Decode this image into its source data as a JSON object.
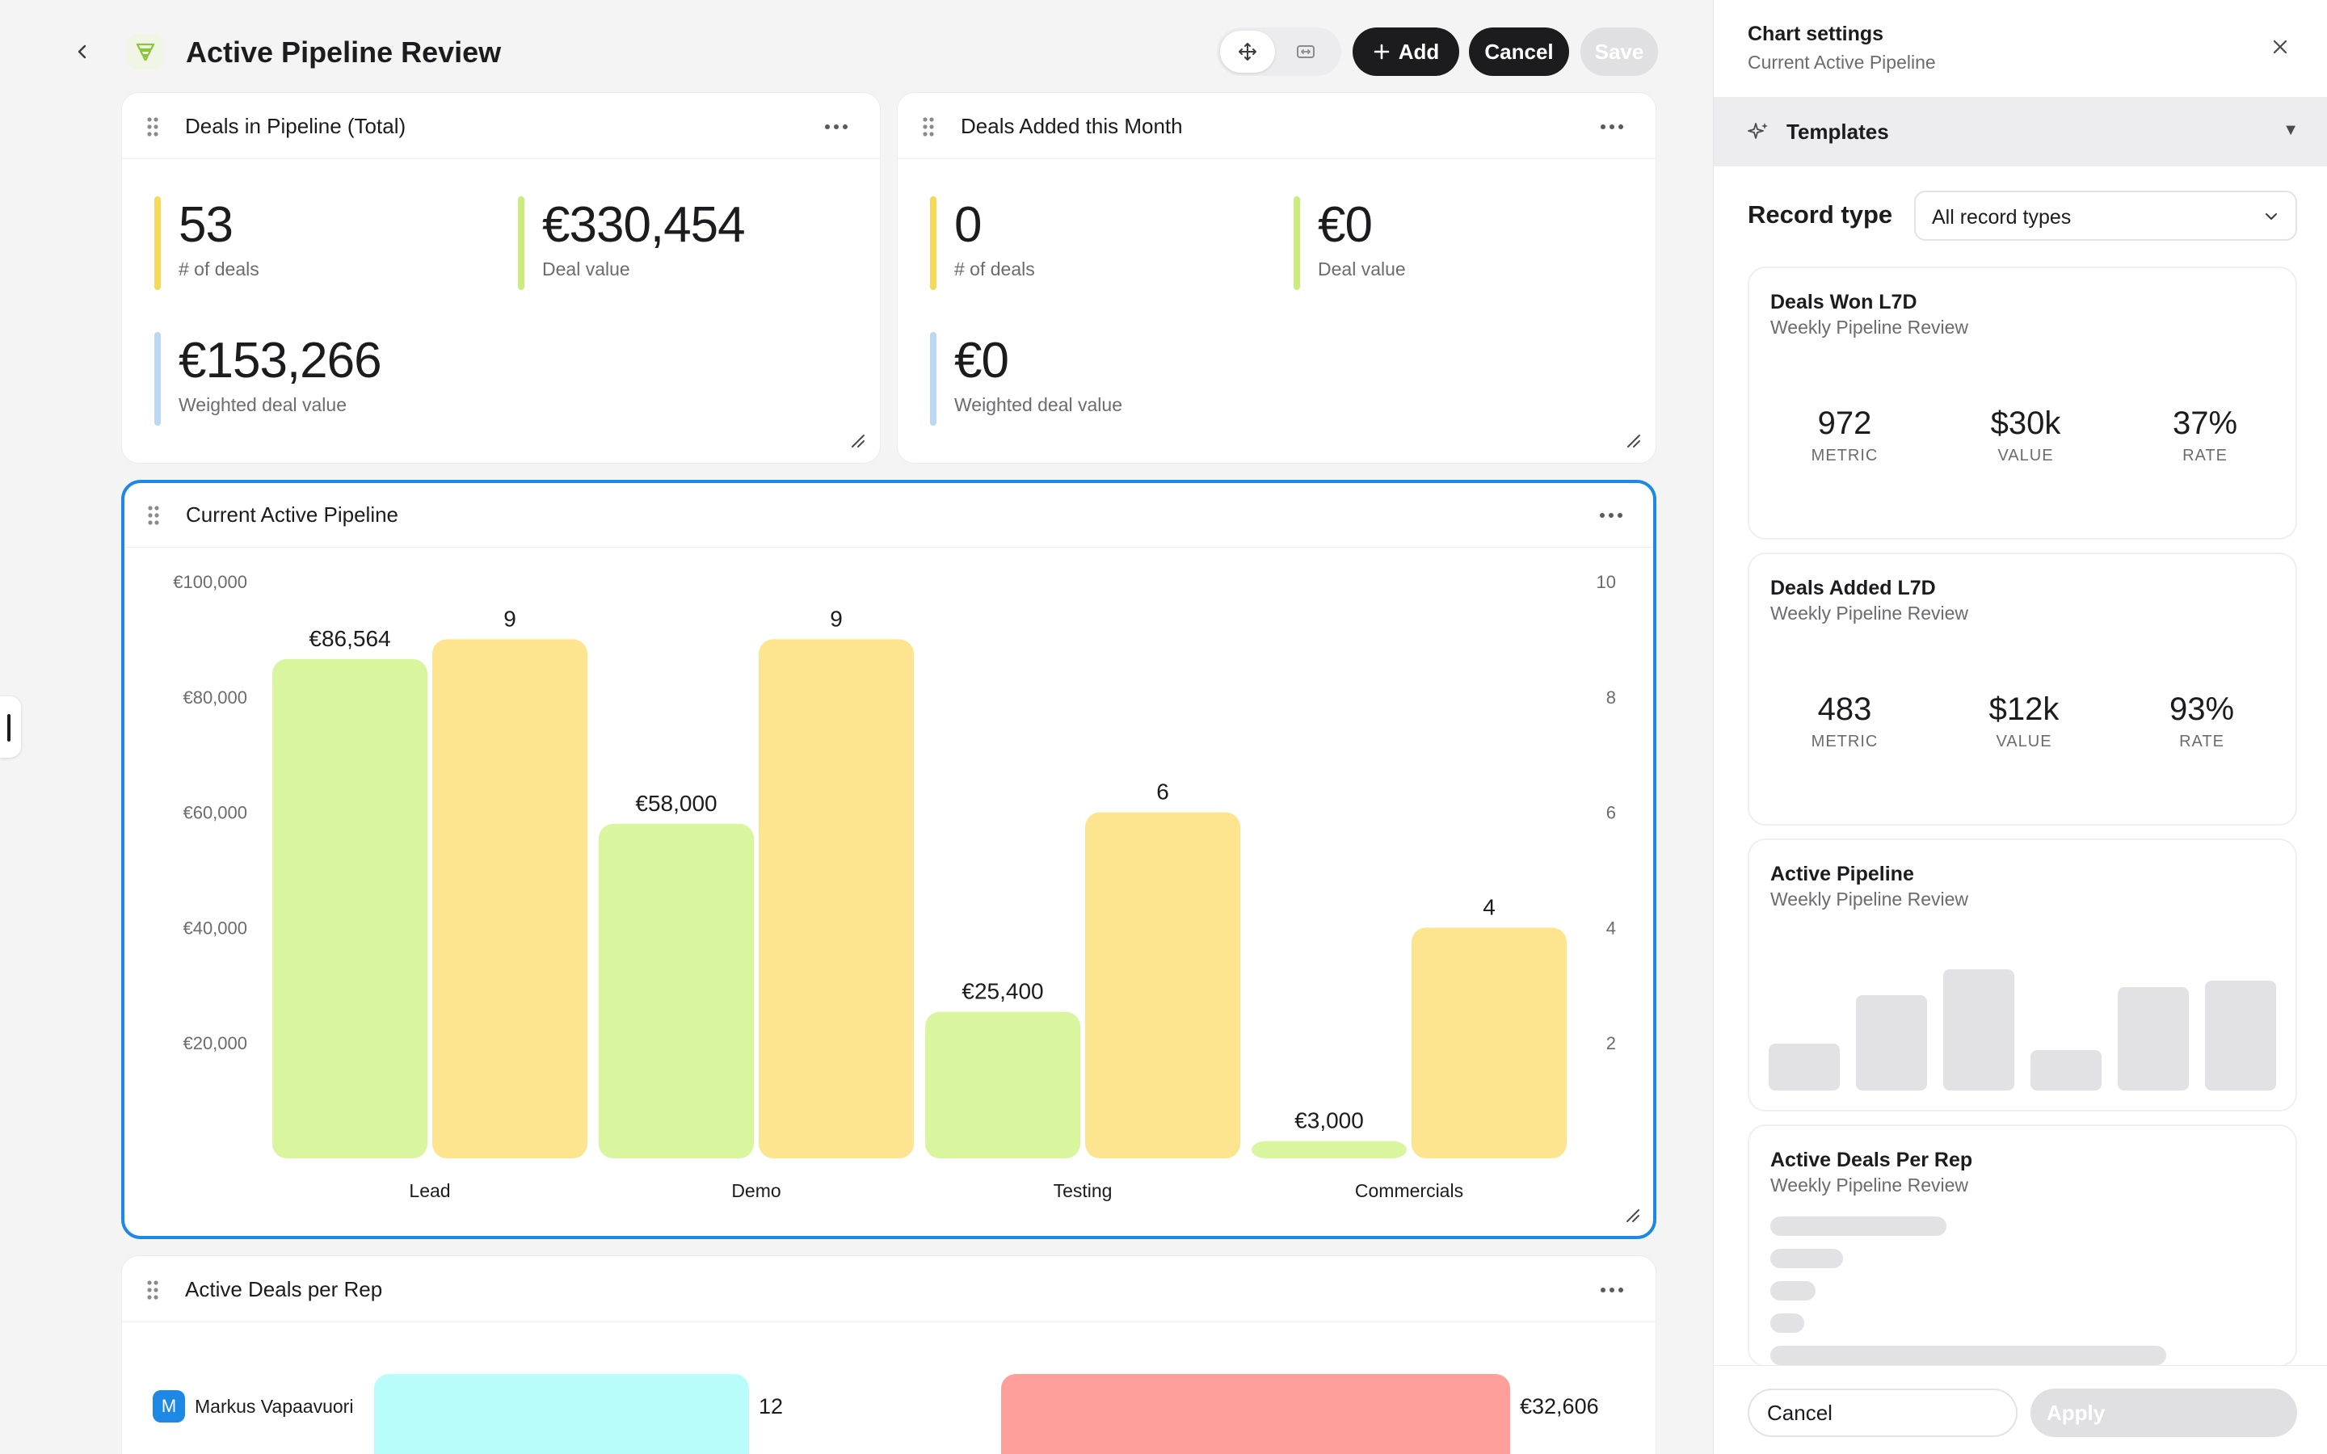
{
  "header": {
    "title": "Active Pipeline Review",
    "add_label": "Add",
    "cancel_label": "Cancel",
    "save_label": "Save"
  },
  "card_total": {
    "title": "Deals in Pipeline (Total)",
    "stats": [
      {
        "value": "53",
        "label": "# of deals",
        "color": "#f6d85a"
      },
      {
        "value": "€330,454",
        "label": "Deal value",
        "color": "#c9ec7c"
      },
      {
        "value": "€153,266",
        "label": "Weighted deal value",
        "color": "#bcd7f3"
      }
    ]
  },
  "card_month": {
    "title": "Deals Added this Month",
    "stats": [
      {
        "value": "0",
        "label": "# of deals",
        "color": "#f6d85a"
      },
      {
        "value": "€0",
        "label": "Deal value",
        "color": "#c9ec7c"
      },
      {
        "value": "€0",
        "label": "Weighted deal value",
        "color": "#bcd7f3"
      }
    ]
  },
  "chart_card": {
    "title": "Current Active Pipeline"
  },
  "chart_data": {
    "type": "bar",
    "title": "Current Active Pipeline",
    "categories": [
      "Lead",
      "Demo",
      "Testing",
      "Commercials"
    ],
    "series": [
      {
        "values": [
          86564,
          58000,
          25400,
          3000
        ],
        "labels": [
          "€86,564",
          "€58,000",
          "€25,400",
          "€3,000"
        ],
        "color": "#d9f59e",
        "axis": "left"
      },
      {
        "values": [
          9,
          9,
          6,
          4
        ],
        "labels": [
          "9",
          "9",
          "6",
          "4"
        ],
        "color": "#fde58f",
        "axis": "right"
      }
    ],
    "y_left": {
      "min": 0,
      "max": 100000,
      "ticks": [
        "€100,000",
        "€80,000",
        "€60,000",
        "€40,000",
        "€20,000"
      ]
    },
    "y_right": {
      "min": 0,
      "max": 10,
      "ticks": [
        "10",
        "8",
        "6",
        "4",
        "2"
      ]
    },
    "grid": false
  },
  "rep_card": {
    "title": "Active Deals per Rep",
    "rows": [
      {
        "initial": "M",
        "name": "Markus Vapaavuori",
        "count": "12",
        "count_fraction": 0.52,
        "value": "€32,606",
        "value_fraction": 0.7,
        "count_color": "#b9fdfb",
        "value_color": "#fe9f9c"
      }
    ]
  },
  "panel": {
    "title": "Chart settings",
    "subtitle": "Current Active Pipeline",
    "templates_label": "Templates",
    "record_type_label": "Record type",
    "record_type_value": "All record types",
    "cancel_label": "Cancel",
    "apply_label": "Apply",
    "templates": [
      {
        "title": "Deals Won L7D",
        "subtitle": "Weekly Pipeline Review",
        "metrics": [
          {
            "value": "972",
            "label": "METRIC"
          },
          {
            "value": "$30k",
            "label": "VALUE"
          },
          {
            "value": "37%",
            "label": "RATE"
          }
        ]
      },
      {
        "title": "Deals Added L7D",
        "subtitle": "Weekly Pipeline Review",
        "metrics": [
          {
            "value": "483",
            "label": "METRIC"
          },
          {
            "value": "$12k",
            "label": "VALUE"
          },
          {
            "value": "93%",
            "label": "RATE"
          }
        ]
      },
      {
        "title": "Active Pipeline",
        "subtitle": "Weekly Pipeline Review"
      },
      {
        "title": "Active Deals Per Rep",
        "subtitle": "Weekly Pipeline Review"
      }
    ]
  }
}
